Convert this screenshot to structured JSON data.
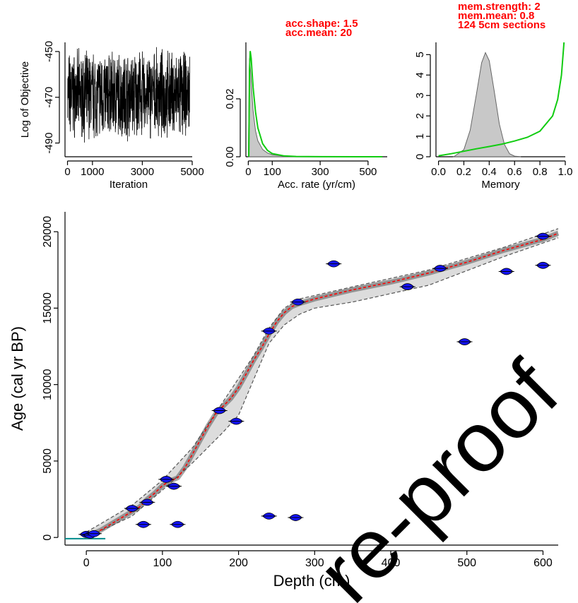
{
  "chart_data": [
    {
      "id": "log",
      "type": "line",
      "xlabel": "Iteration",
      "ylabel": "Log of Objective",
      "xlim": [
        -100,
        5000
      ],
      "ylim": [
        -496,
        -446
      ],
      "x_ticks": [
        {
          "v": 0,
          "t": "0"
        },
        {
          "v": 1000,
          "t": "1000"
        },
        {
          "v": 3000,
          "t": "3000"
        },
        {
          "v": 5000,
          "t": "5000"
        }
      ],
      "y_ticks": [
        {
          "v": -450,
          "t": "-450"
        },
        {
          "v": -470,
          "t": "-470"
        },
        {
          "v": -490,
          "t": "-490"
        }
      ],
      "series": [
        {
          "approx_mean": -469,
          "approx_range": [
            -496,
            -448
          ],
          "n_iterations": 4900
        }
      ],
      "annotations": []
    },
    {
      "id": "acc",
      "type": "area",
      "xlabel": "Acc. rate (yr/cm)",
      "ylabel": "",
      "xlim": [
        -10,
        580
      ],
      "ylim": [
        0,
        0.0395
      ],
      "x_ticks": [
        {
          "v": 0,
          "t": "0"
        },
        {
          "v": 100,
          "t": "100"
        },
        {
          "v": 300,
          "t": "300"
        },
        {
          "v": 500,
          "t": "500"
        }
      ],
      "y_ticks": [
        {
          "v": 0,
          "t": "0.00"
        },
        {
          "v": 0.02,
          "t": "0.02"
        }
      ],
      "series": [
        {
          "role": "posterior",
          "x": [
            0,
            5,
            10,
            15,
            20,
            30,
            40,
            60,
            80,
            100,
            150,
            200,
            300
          ],
          "y": [
            0,
            0.034,
            0.029,
            0.022,
            0.016,
            0.009,
            0.0055,
            0.0025,
            0.0013,
            0.0007,
            0.0002,
            5e-05,
            0
          ]
        },
        {
          "role": "prior",
          "x": [
            2,
            5,
            8,
            12,
            16,
            20,
            30,
            40,
            60,
            80,
            100,
            150,
            200,
            300,
            560
          ],
          "y": [
            0,
            0.03,
            0.0365,
            0.034,
            0.029,
            0.024,
            0.0155,
            0.01,
            0.0045,
            0.0022,
            0.0011,
            0.0003,
            0.0001,
            3e-05,
            0
          ]
        }
      ],
      "annotations": [
        "acc.shape:  1.5",
        "acc.mean:  20"
      ]
    },
    {
      "id": "mem",
      "type": "area",
      "xlabel": "Memory",
      "ylabel": "",
      "xlim": [
        -0.02,
        1.0
      ],
      "ylim": [
        0,
        5.6
      ],
      "x_ticks": [
        {
          "v": 0,
          "t": "0.0"
        },
        {
          "v": 0.2,
          "t": "0.2"
        },
        {
          "v": 0.4,
          "t": "0.4"
        },
        {
          "v": 0.6,
          "t": "0.6"
        },
        {
          "v": 0.8,
          "t": "0.8"
        },
        {
          "v": 1.0,
          "t": "1.0"
        }
      ],
      "y_ticks": [
        {
          "v": 0,
          "t": "0"
        },
        {
          "v": 1,
          "t": "1"
        },
        {
          "v": 2,
          "t": "2"
        },
        {
          "v": 3,
          "t": "3"
        },
        {
          "v": 4,
          "t": "4"
        },
        {
          "v": 5,
          "t": "5"
        }
      ],
      "series": [
        {
          "role": "posterior",
          "x": [
            0.12,
            0.2,
            0.25,
            0.3,
            0.34,
            0.37,
            0.4,
            0.44,
            0.48,
            0.52,
            0.56,
            0.6,
            0.65
          ],
          "y": [
            0,
            0.35,
            1.3,
            3.1,
            4.6,
            5.1,
            4.7,
            3.2,
            1.6,
            0.6,
            0.15,
            0.03,
            0
          ]
        },
        {
          "role": "prior",
          "x": [
            0.0,
            0.1,
            0.2,
            0.3,
            0.4,
            0.5,
            0.6,
            0.7,
            0.8,
            0.9,
            0.94,
            0.97,
            0.99
          ],
          "y": [
            0.05,
            0.15,
            0.27,
            0.39,
            0.5,
            0.62,
            0.77,
            0.95,
            1.25,
            2.0,
            2.8,
            4.0,
            5.6
          ]
        }
      ],
      "annotations": [
        "mem.strength: 2",
        "mem.mean: 0.8",
        "124 5cm sections"
      ]
    },
    {
      "id": "age",
      "type": "line",
      "xlabel": "Depth (cm)",
      "ylabel": "Age (cal yr BP)",
      "xlim": [
        -28,
        620
      ],
      "ylim": [
        -500,
        21300
      ],
      "x_ticks": [
        {
          "v": 0,
          "t": "0"
        },
        {
          "v": 100,
          "t": "100"
        },
        {
          "v": 200,
          "t": "200"
        },
        {
          "v": 300,
          "t": "300"
        },
        {
          "v": 400,
          "t": "400"
        },
        {
          "v": 500,
          "t": "500"
        },
        {
          "v": 600,
          "t": "600"
        }
      ],
      "y_ticks": [
        {
          "v": 0,
          "t": "0"
        },
        {
          "v": 5000,
          "t": "5000"
        },
        {
          "v": 10000,
          "t": "10000"
        },
        {
          "v": 15000,
          "t": "15000"
        },
        {
          "v": 20000,
          "t": "20000"
        }
      ],
      "series": [
        {
          "role": "mean-age-model",
          "x": [
            0,
            20,
            40,
            60,
            70,
            80,
            90,
            100,
            110,
            120,
            130,
            140,
            150,
            160,
            170,
            180,
            190,
            200,
            210,
            220,
            230,
            240,
            250,
            260,
            270,
            280,
            300,
            350,
            400,
            450,
            500,
            550,
            600,
            620
          ],
          "y": [
            50,
            500,
            1100,
            1700,
            2000,
            2500,
            2900,
            3400,
            3700,
            3900,
            4600,
            5500,
            6400,
            7300,
            8100,
            8600,
            9100,
            9800,
            10700,
            11600,
            12400,
            13300,
            14100,
            14700,
            15100,
            15300,
            15600,
            16200,
            16700,
            17300,
            18000,
            18800,
            19500,
            19900
          ]
        },
        {
          "role": "envelope-upper",
          "x": [
            0,
            60,
            100,
            140,
            180,
            220,
            240,
            260,
            280,
            350,
            450,
            550,
            620
          ],
          "y": [
            350,
            2100,
            3750,
            5900,
            8900,
            11900,
            13700,
            15000,
            15600,
            16400,
            17500,
            19000,
            20200
          ]
        },
        {
          "role": "envelope-lower",
          "x": [
            0,
            60,
            100,
            140,
            180,
            200,
            240,
            260,
            280,
            300,
            350,
            450,
            550,
            620
          ],
          "y": [
            0,
            1400,
            3100,
            4900,
            6900,
            8000,
            12700,
            13900,
            14600,
            15000,
            15400,
            16500,
            18400,
            19600
          ]
        },
        {
          "role": "dated-samples",
          "x": [
            0,
            5,
            10,
            60,
            75,
            80,
            105,
            115,
            120,
            175,
            197,
            240,
            240,
            275,
            278,
            325,
            422,
            465,
            497,
            552,
            600,
            600
          ],
          "y": [
            200,
            150,
            250,
            1900,
            850,
            2300,
            3800,
            3350,
            850,
            8300,
            7600,
            13500,
            1400,
            1300,
            15400,
            17900,
            16400,
            17600,
            12800,
            17400,
            17800,
            19700
          ]
        }
      ],
      "annotations": []
    }
  ],
  "colors": {
    "posterior": "#000000",
    "prior": "#11cc11",
    "annotation": "#ff0000",
    "mean_model": "#ff0000",
    "envelope": "#555555",
    "dates": "#1414ff",
    "surface_line": "#008b8b",
    "histogram_fill": "#c8c8c8"
  },
  "watermark": "re-proof"
}
